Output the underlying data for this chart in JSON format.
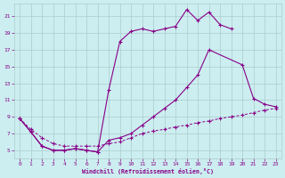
{
  "xlabel": "Windchill (Refroidissement éolien,°C)",
  "bg_color": "#cceef0",
  "grid_color": "#aacccc",
  "line_color": "#880088",
  "xlim": [
    -0.5,
    23.5
  ],
  "ylim": [
    4.0,
    22.5
  ],
  "xticks": [
    0,
    1,
    2,
    3,
    4,
    5,
    6,
    7,
    8,
    9,
    10,
    11,
    12,
    13,
    14,
    15,
    16,
    17,
    18,
    19,
    20,
    21,
    22,
    23
  ],
  "yticks": [
    5,
    7,
    9,
    11,
    13,
    15,
    17,
    19,
    21
  ],
  "line1_x": [
    0,
    1,
    2,
    3,
    4,
    5,
    6,
    7,
    8,
    9,
    10,
    11,
    12,
    13,
    14,
    15,
    16,
    17,
    18,
    19
  ],
  "line1_y": [
    8.8,
    7.2,
    5.5,
    5.0,
    5.0,
    5.2,
    5.0,
    4.8,
    12.2,
    18.0,
    19.2,
    19.5,
    19.2,
    19.5,
    19.8,
    21.8,
    20.5,
    21.5,
    20.0,
    19.5
  ],
  "line2_x": [
    0,
    1,
    2,
    3,
    4,
    5,
    6,
    7,
    8,
    9,
    10,
    11,
    12,
    13,
    14,
    15,
    16,
    17,
    20,
    21,
    22,
    23
  ],
  "line2_y": [
    8.8,
    7.2,
    5.5,
    5.0,
    5.0,
    5.2,
    5.0,
    4.8,
    6.2,
    6.5,
    7.0,
    8.0,
    9.0,
    10.0,
    11.0,
    12.5,
    14.0,
    17.0,
    15.2,
    11.2,
    10.5,
    10.2
  ],
  "line3_x": [
    0,
    1,
    2,
    3,
    4,
    5,
    6,
    7,
    8,
    9,
    10,
    11,
    12,
    13,
    14,
    15,
    16,
    17,
    18,
    19,
    20,
    21,
    22,
    23
  ],
  "line3_y": [
    8.8,
    7.5,
    6.5,
    5.8,
    5.5,
    5.5,
    5.5,
    5.5,
    5.8,
    6.0,
    6.5,
    7.0,
    7.3,
    7.5,
    7.8,
    8.0,
    8.3,
    8.5,
    8.8,
    9.0,
    9.2,
    9.5,
    9.8,
    10.0
  ]
}
